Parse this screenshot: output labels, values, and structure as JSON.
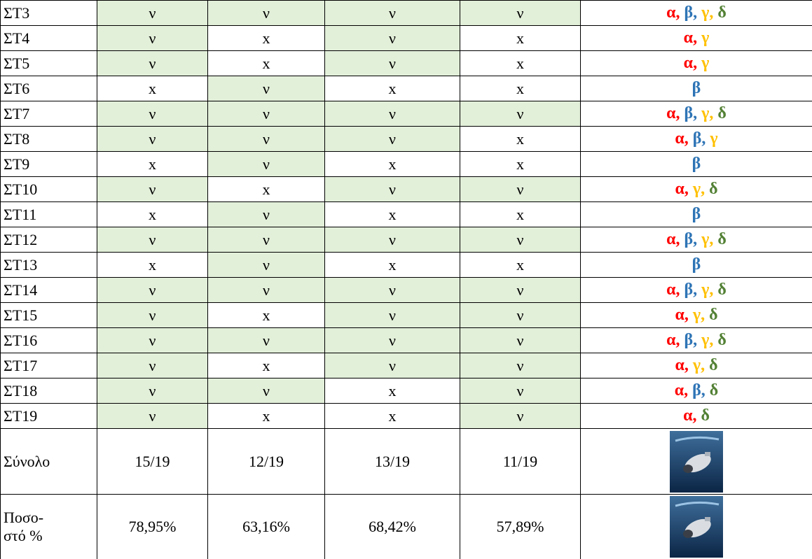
{
  "table": {
    "highlight": {
      "value": "ν",
      "color": "#e2efd9"
    },
    "letter_colors": {
      "α": "#ff0000",
      "β": "#2e74b5",
      "γ": "#ffc000",
      "δ": "#538135"
    },
    "rows": [
      {
        "label": "ΣΤ3",
        "marks": [
          "ν",
          "ν",
          "ν",
          "ν"
        ],
        "groups": [
          "α,",
          "β,",
          "γ,",
          "δ"
        ]
      },
      {
        "label": "ΣΤ4",
        "marks": [
          "ν",
          "x",
          "ν",
          "x"
        ],
        "groups": [
          "α,",
          "γ"
        ]
      },
      {
        "label": "ΣΤ5",
        "marks": [
          "ν",
          "x",
          "ν",
          "x"
        ],
        "groups": [
          "α,",
          "γ"
        ]
      },
      {
        "label": "ΣΤ6",
        "marks": [
          "x",
          "ν",
          "x",
          "x"
        ],
        "groups": [
          "β"
        ]
      },
      {
        "label": "ΣΤ7",
        "marks": [
          "ν",
          "ν",
          "ν",
          "ν"
        ],
        "groups": [
          "α,",
          "β,",
          "γ,",
          "δ"
        ]
      },
      {
        "label": "ΣΤ8",
        "marks": [
          "ν",
          "ν",
          "ν",
          "x"
        ],
        "groups": [
          "α,",
          "β,",
          "γ"
        ]
      },
      {
        "label": "ΣΤ9",
        "marks": [
          "x",
          "ν",
          "x",
          "x"
        ],
        "groups": [
          "β"
        ]
      },
      {
        "label": "ΣΤ10",
        "marks": [
          "ν",
          "x",
          "ν",
          "ν"
        ],
        "groups": [
          "α,",
          "γ,",
          "δ"
        ]
      },
      {
        "label": "ΣΤ11",
        "marks": [
          "x",
          "ν",
          "x",
          "x"
        ],
        "groups": [
          "β"
        ]
      },
      {
        "label": "ΣΤ12",
        "marks": [
          "ν",
          "ν",
          "ν",
          "ν"
        ],
        "groups": [
          "α,",
          "β,",
          "γ,",
          "δ"
        ]
      },
      {
        "label": "ΣΤ13",
        "marks": [
          "x",
          "ν",
          "x",
          "x"
        ],
        "groups": [
          "β"
        ]
      },
      {
        "label": "ΣΤ14",
        "marks": [
          "ν",
          "ν",
          "ν",
          "ν"
        ],
        "groups": [
          "α,",
          "β,",
          "γ,",
          "δ"
        ]
      },
      {
        "label": "ΣΤ15",
        "marks": [
          "ν",
          "x",
          "ν",
          "ν"
        ],
        "groups": [
          "α,",
          "γ,",
          "δ"
        ]
      },
      {
        "label": "ΣΤ16",
        "marks": [
          "ν",
          "ν",
          "ν",
          "ν"
        ],
        "groups": [
          "α,",
          "β,",
          "γ,",
          "δ"
        ]
      },
      {
        "label": "ΣΤ17",
        "marks": [
          "ν",
          "x",
          "ν",
          "ν"
        ],
        "groups": [
          "α,",
          "γ,",
          "δ"
        ]
      },
      {
        "label": "ΣΤ18",
        "marks": [
          "ν",
          "ν",
          "x",
          "ν"
        ],
        "groups": [
          "α,",
          "β,",
          "δ"
        ]
      },
      {
        "label": "ΣΤ19",
        "marks": [
          "ν",
          "x",
          "x",
          "ν"
        ],
        "groups": [
          "α,",
          "δ"
        ]
      }
    ],
    "summary": [
      {
        "label_lines": [
          "Σύνολο"
        ],
        "marks": [
          "15/19",
          "12/19",
          "13/19",
          "11/19"
        ]
      },
      {
        "label_lines": [
          "Ποσο-",
          "στό %"
        ],
        "marks": [
          "78,95%",
          "63,16%",
          "68,42%",
          "57,89%"
        ]
      }
    ]
  }
}
